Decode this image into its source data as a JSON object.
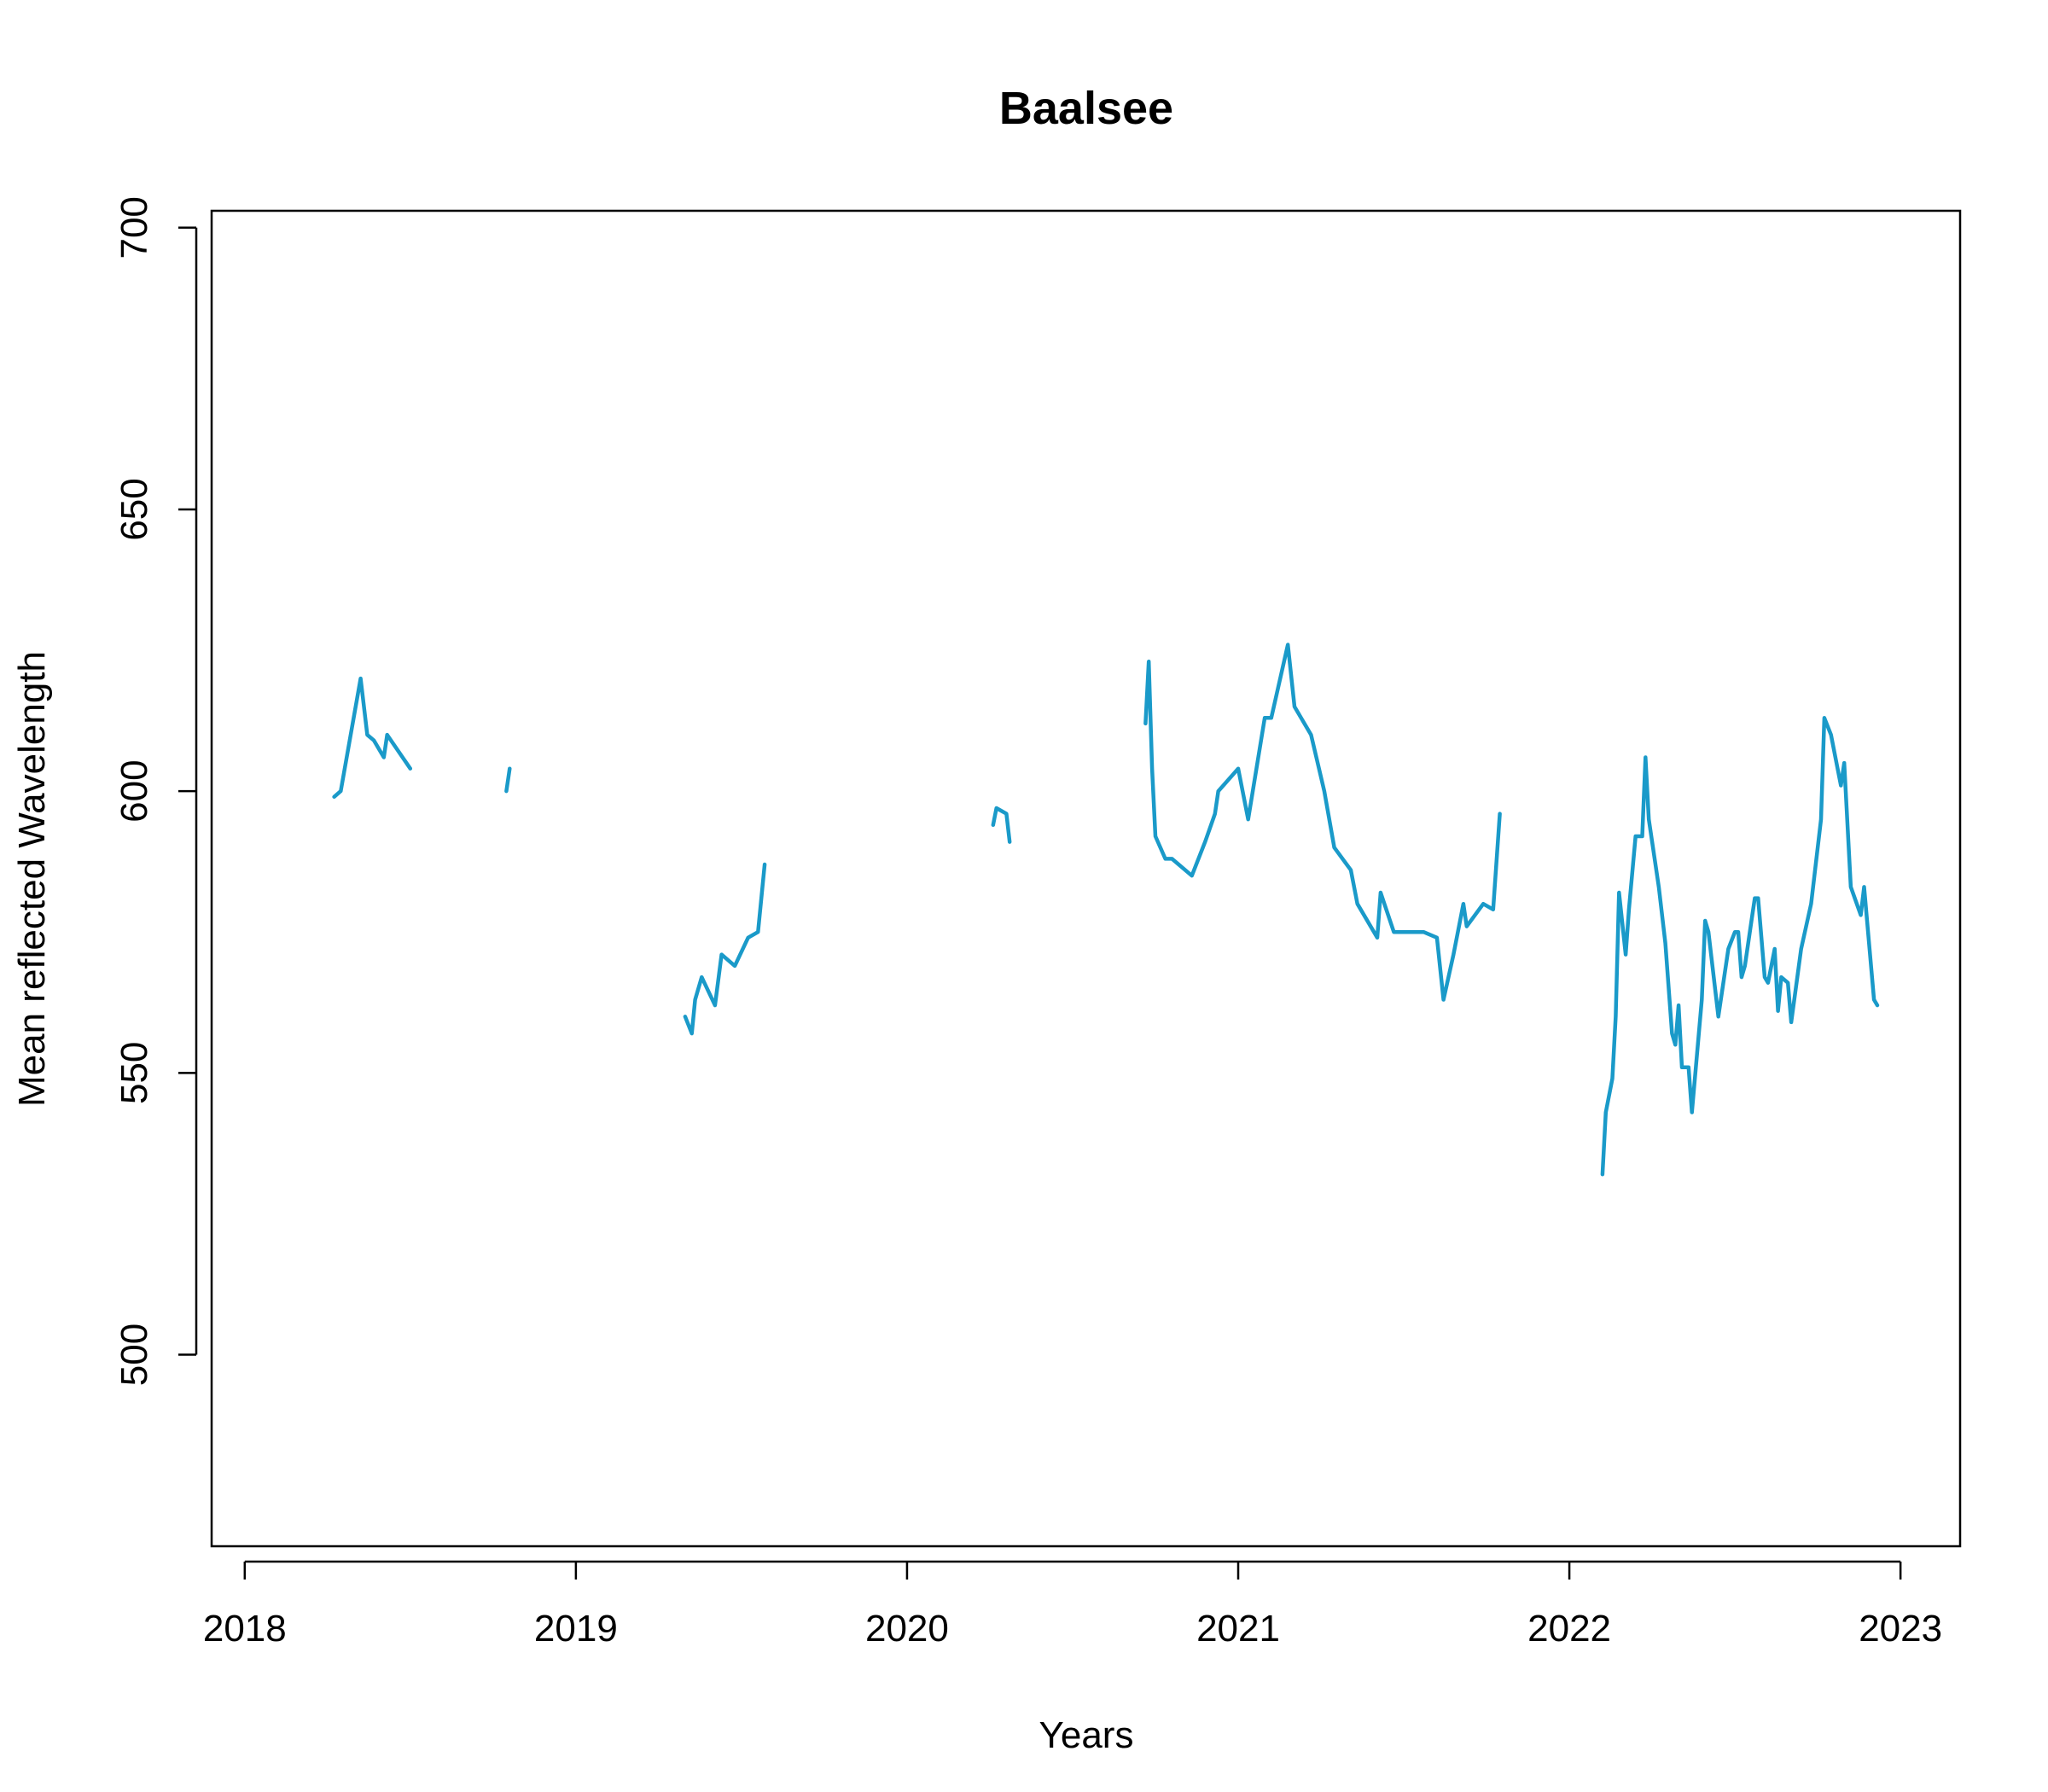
{
  "chart_data": {
    "type": "line",
    "title": "Baalsee",
    "xlabel": "Years",
    "ylabel": "Mean reflected Wavelength",
    "xlim": [
      2017.9,
      2023.18
    ],
    "ylim": [
      466,
      703
    ],
    "x_ticks": [
      2018,
      2019,
      2020,
      2021,
      2022,
      2023
    ],
    "x_tick_labels": [
      "2018",
      "2019",
      "2020",
      "2021",
      "2022",
      "2023"
    ],
    "y_ticks": [
      500,
      550,
      600,
      650,
      700
    ],
    "y_tick_labels": [
      "500",
      "550",
      "600",
      "650",
      "700"
    ],
    "grid": false,
    "legend": "none",
    "color": "#1a9ac9",
    "segments": [
      [
        [
          2018.27,
          599
        ],
        [
          2018.29,
          600
        ],
        [
          2018.35,
          620
        ],
        [
          2018.37,
          610
        ],
        [
          2018.39,
          609
        ],
        [
          2018.42,
          606
        ],
        [
          2018.43,
          610
        ],
        [
          2018.5,
          604
        ]
      ],
      [
        [
          2018.79,
          600
        ],
        [
          2018.8,
          604
        ]
      ],
      [
        [
          2019.33,
          560
        ],
        [
          2019.35,
          557
        ],
        [
          2019.36,
          563
        ],
        [
          2019.38,
          567
        ],
        [
          2019.42,
          562
        ],
        [
          2019.44,
          571
        ],
        [
          2019.48,
          569
        ],
        [
          2019.52,
          574
        ],
        [
          2019.55,
          575
        ],
        [
          2019.57,
          587
        ]
      ],
      [
        [
          2020.26,
          594
        ],
        [
          2020.27,
          597
        ],
        [
          2020.3,
          596
        ],
        [
          2020.31,
          591
        ]
      ],
      [
        [
          2020.72,
          612
        ],
        [
          2020.73,
          623
        ],
        [
          2020.74,
          604
        ],
        [
          2020.75,
          592
        ],
        [
          2020.78,
          588
        ],
        [
          2020.8,
          588
        ],
        [
          2020.86,
          585
        ],
        [
          2020.9,
          591
        ],
        [
          2020.93,
          596
        ],
        [
          2020.94,
          600
        ],
        [
          2021.0,
          604
        ],
        [
          2021.03,
          595
        ],
        [
          2021.08,
          613
        ],
        [
          2021.1,
          613
        ],
        [
          2021.15,
          626
        ],
        [
          2021.17,
          615
        ],
        [
          2021.22,
          610
        ],
        [
          2021.26,
          600
        ],
        [
          2021.29,
          590
        ],
        [
          2021.34,
          586
        ],
        [
          2021.36,
          580
        ],
        [
          2021.42,
          574
        ],
        [
          2021.43,
          582
        ],
        [
          2021.47,
          575
        ],
        [
          2021.53,
          575
        ],
        [
          2021.56,
          575
        ],
        [
          2021.6,
          574
        ],
        [
          2021.62,
          563
        ],
        [
          2021.65,
          571
        ],
        [
          2021.68,
          580
        ],
        [
          2021.69,
          576
        ],
        [
          2021.74,
          580
        ],
        [
          2021.77,
          579
        ],
        [
          2021.79,
          596
        ]
      ],
      [
        [
          2022.1,
          532
        ],
        [
          2022.11,
          543
        ],
        [
          2022.13,
          549
        ],
        [
          2022.14,
          560
        ],
        [
          2022.15,
          582
        ],
        [
          2022.17,
          571
        ],
        [
          2022.18,
          579
        ],
        [
          2022.2,
          592
        ],
        [
          2022.22,
          592
        ],
        [
          2022.23,
          606
        ],
        [
          2022.24,
          595
        ],
        [
          2022.27,
          583
        ],
        [
          2022.29,
          573
        ],
        [
          2022.31,
          557
        ],
        [
          2022.32,
          555
        ],
        [
          2022.33,
          562
        ],
        [
          2022.34,
          551
        ],
        [
          2022.36,
          551
        ],
        [
          2022.37,
          543
        ],
        [
          2022.4,
          563
        ],
        [
          2022.41,
          577
        ],
        [
          2022.42,
          575
        ],
        [
          2022.45,
          560
        ],
        [
          2022.48,
          572
        ],
        [
          2022.5,
          575
        ],
        [
          2022.51,
          575
        ],
        [
          2022.52,
          567
        ],
        [
          2022.53,
          569
        ],
        [
          2022.55,
          577
        ],
        [
          2022.56,
          581
        ],
        [
          2022.57,
          581
        ],
        [
          2022.59,
          567
        ],
        [
          2022.6,
          566
        ],
        [
          2022.62,
          572
        ],
        [
          2022.63,
          561
        ],
        [
          2022.64,
          567
        ],
        [
          2022.66,
          566
        ],
        [
          2022.67,
          559
        ],
        [
          2022.7,
          572
        ],
        [
          2022.73,
          580
        ],
        [
          2022.76,
          595
        ],
        [
          2022.77,
          613
        ],
        [
          2022.79,
          610
        ],
        [
          2022.82,
          601
        ],
        [
          2022.83,
          605
        ],
        [
          2022.85,
          583
        ],
        [
          2022.88,
          578
        ],
        [
          2022.89,
          583
        ],
        [
          2022.92,
          563
        ],
        [
          2022.93,
          562
        ]
      ]
    ]
  }
}
